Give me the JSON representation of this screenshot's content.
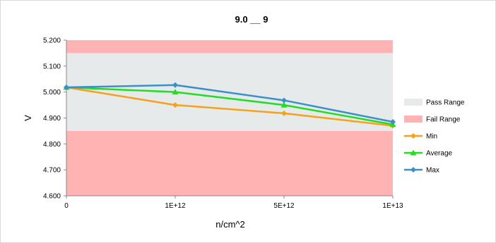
{
  "chart_data": {
    "type": "line",
    "title": "9.0  __      9",
    "xlabel": "n/cm^2",
    "ylabel": "V",
    "categories": [
      "0",
      "1E+12",
      "5E+12",
      "1E+13"
    ],
    "ylim": [
      4.6,
      5.2
    ],
    "yticks": [
      "4.600",
      "4.700",
      "4.800",
      "4.900",
      "5.000",
      "5.100",
      "5.200"
    ],
    "pass_range": [
      4.85,
      5.15
    ],
    "grid": false,
    "legend_position": "right",
    "legend": {
      "pass": "Pass Range",
      "fail": "Fail Range"
    },
    "colors": {
      "pass": "#e6eaea",
      "fail": "#ffb3b3"
    },
    "series": [
      {
        "name": "Min",
        "color": "#f7a11a",
        "marker": "diamond",
        "values": [
          5.018,
          4.95,
          4.918,
          4.87
        ]
      },
      {
        "name": "Average",
        "color": "#22dd22",
        "marker": "triangle",
        "values": [
          5.018,
          5.0,
          4.95,
          4.875
        ]
      },
      {
        "name": "Max",
        "color": "#3c8fc8",
        "marker": "diamond",
        "values": [
          5.018,
          5.027,
          4.968,
          4.885
        ]
      }
    ]
  }
}
